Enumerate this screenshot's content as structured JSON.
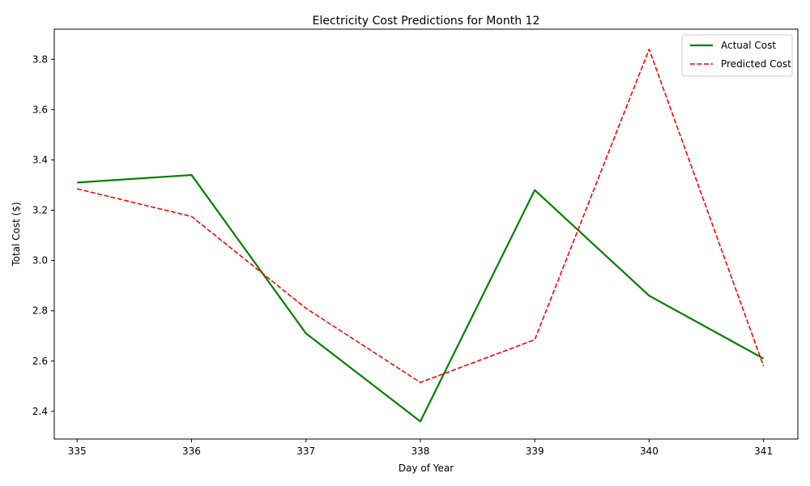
{
  "chart_data": {
    "type": "line",
    "title": "Electricity Cost Predictions for Month 12",
    "xlabel": "Day of Year",
    "ylabel": "Total Cost ($)",
    "x": [
      335,
      336,
      337,
      338,
      339,
      340,
      341
    ],
    "xlim": [
      334.8,
      341.3
    ],
    "ylim": [
      2.29,
      3.92
    ],
    "xticks": [
      335,
      336,
      337,
      338,
      339,
      340,
      341
    ],
    "yticks": [
      2.4,
      2.6,
      2.8,
      3.0,
      3.2,
      3.4,
      3.6,
      3.8
    ],
    "ytick_labels": [
      "2.4",
      "2.6",
      "2.8",
      "3.0",
      "3.2",
      "3.4",
      "3.6",
      "3.8"
    ],
    "grid": false,
    "legend_position": "top-right",
    "series": [
      {
        "name": "Actual Cost",
        "color": "#008000",
        "style": "solid",
        "values": [
          3.31,
          3.34,
          2.71,
          2.36,
          3.28,
          2.86,
          2.61
        ]
      },
      {
        "name": "Predicted Cost",
        "color": "#ff0000",
        "style": "dashed",
        "values": [
          3.285,
          3.175,
          2.81,
          2.515,
          2.685,
          3.84,
          2.58
        ]
      }
    ]
  }
}
